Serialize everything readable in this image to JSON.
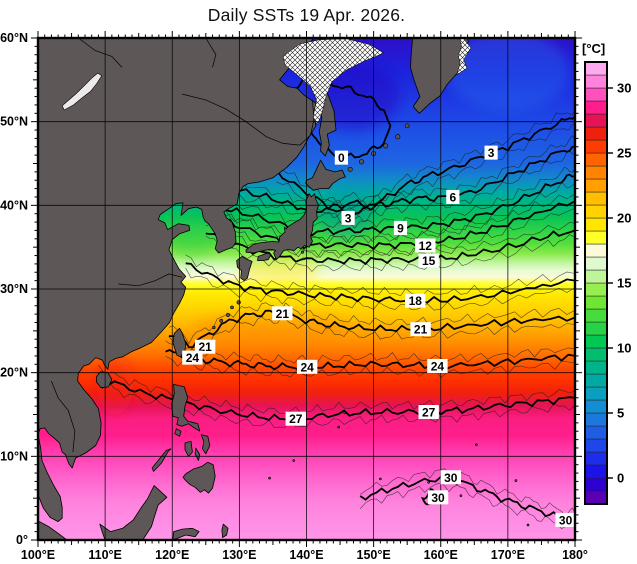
{
  "title": "Daily SSTs 19 Apr. 2026.",
  "axes": {
    "x": {
      "labels": [
        "100°E",
        "110°E",
        "120°E",
        "130°E",
        "140°E",
        "150°E",
        "160°E",
        "170°E",
        "180°"
      ],
      "lons": [
        100,
        110,
        120,
        130,
        140,
        150,
        160,
        170,
        180
      ]
    },
    "y": {
      "labels": [
        "0°",
        "10°N",
        "20°N",
        "30°N",
        "40°N",
        "50°N",
        "60°N"
      ],
      "lats": [
        0,
        10,
        20,
        30,
        40,
        50,
        60
      ]
    }
  },
  "colorbar": {
    "title": "[°C]",
    "tick_values": [
      30,
      25,
      20,
      15,
      10,
      5,
      0
    ],
    "tick_labels": [
      "30",
      "25",
      "20",
      "15",
      "10",
      "5",
      "0"
    ],
    "value_min": -2,
    "value_max": 32,
    "cell_step_c": 1,
    "cells_bottom_to_top": [
      "#5a00b4",
      "#2e00d2",
      "#1c14e6",
      "#1e2ee8",
      "#1e46e8",
      "#1e5ee6",
      "#1c78dc",
      "#148ed2",
      "#0a9fbe",
      "#00aaa2",
      "#00b48a",
      "#00be6e",
      "#00c850",
      "#28d246",
      "#46dc3c",
      "#6ee632",
      "#96ee50",
      "#bef59b",
      "#dffad0",
      "#fbfbd8",
      "#ffff28",
      "#ffe600",
      "#ffd200",
      "#ffbe00",
      "#ffa000",
      "#ff8200",
      "#ff6400",
      "#ff3c00",
      "#f0200f",
      "#e61456",
      "#ff1e8c",
      "#ff50be",
      "#ff82dc",
      "#ffaaf0"
    ]
  },
  "chart_data": {
    "type": "heatmap",
    "title": "Daily SSTs 19 Apr. 2026.",
    "variable": "sea surface temperature",
    "units": "°C",
    "x_axis": {
      "label": "longitude",
      "range_deg_east": [
        100,
        180
      ],
      "major_tick_deg": 10,
      "minor_tick_deg": 1
    },
    "y_axis": {
      "label": "latitude",
      "range_deg_north": [
        0,
        60
      ],
      "major_tick_deg": 10,
      "minor_tick_deg": 1
    },
    "colorbar_range_c": [
      -2,
      32
    ],
    "contour_interval_c": 1,
    "bold_contour_interval_c": 3,
    "isotherms": [
      {
        "value": 0,
        "closed": true,
        "points": [
          [
            138,
            54
          ],
          [
            139,
            51
          ],
          [
            141,
            48.5
          ],
          [
            143,
            46.5
          ],
          [
            146,
            45.7
          ],
          [
            149,
            46.2
          ],
          [
            151.5,
            47.5
          ],
          [
            152.5,
            49.5
          ],
          [
            151.5,
            51.5
          ],
          [
            149,
            53
          ],
          [
            146,
            54
          ],
          [
            142.5,
            54.8
          ],
          [
            139.8,
            54.8
          ]
        ]
      },
      {
        "value": 3,
        "points": [
          [
            135.5,
            44
          ],
          [
            140,
            41.5
          ],
          [
            144,
            39.5
          ],
          [
            146.2,
            38.7
          ],
          [
            149,
            39.5
          ],
          [
            152,
            41
          ],
          [
            155,
            42.5
          ],
          [
            158,
            43.5
          ],
          [
            162,
            44.5
          ],
          [
            166,
            45.8
          ],
          [
            170,
            47
          ],
          [
            174,
            48.5
          ],
          [
            178,
            50
          ],
          [
            180,
            50.6
          ]
        ]
      },
      {
        "value": 6,
        "points": [
          [
            129,
            42
          ],
          [
            134,
            41
          ],
          [
            138,
            40
          ],
          [
            141,
            39.3
          ],
          [
            144,
            39.8
          ],
          [
            147,
            40.3
          ],
          [
            150,
            40
          ],
          [
            153,
            40.3
          ],
          [
            156,
            40.8
          ],
          [
            159,
            40.9
          ],
          [
            162,
            41
          ],
          [
            166,
            42
          ],
          [
            170,
            43.5
          ],
          [
            174,
            45
          ],
          [
            178,
            46.5
          ],
          [
            180,
            47
          ]
        ]
      },
      {
        "value": 9,
        "points": [
          [
            128,
            39.5
          ],
          [
            132,
            38.8
          ],
          [
            136,
            37.8
          ],
          [
            140,
            36.8
          ],
          [
            144,
            36.9
          ],
          [
            148,
            37
          ],
          [
            151,
            37.2
          ],
          [
            154,
            37.3
          ],
          [
            158,
            37.5
          ],
          [
            162,
            38
          ],
          [
            166,
            38.8
          ],
          [
            170,
            40
          ],
          [
            174,
            41.5
          ],
          [
            178,
            43
          ],
          [
            180,
            43.5
          ]
        ]
      },
      {
        "value": 12,
        "points": [
          [
            126.5,
            38.5
          ],
          [
            130,
            37.5
          ],
          [
            134,
            36.3
          ],
          [
            138,
            35.3
          ],
          [
            142,
            35.2
          ],
          [
            146,
            35.3
          ],
          [
            150,
            35.2
          ],
          [
            154,
            35.3
          ],
          [
            158,
            35.6
          ],
          [
            162,
            36
          ],
          [
            166,
            36.8
          ],
          [
            170,
            37.8
          ],
          [
            174,
            39
          ],
          [
            180,
            40.5
          ]
        ]
      },
      {
        "value": 15,
        "points": [
          [
            125,
            37
          ],
          [
            128,
            35.8
          ],
          [
            132,
            34.6
          ],
          [
            136,
            33.8
          ],
          [
            140,
            33.5
          ],
          [
            144,
            33.4
          ],
          [
            148,
            33.4
          ],
          [
            152,
            33.5
          ],
          [
            156,
            33.5
          ],
          [
            160,
            33.6
          ],
          [
            164,
            34
          ],
          [
            170,
            35
          ],
          [
            176,
            36.3
          ],
          [
            180,
            37
          ]
        ]
      },
      {
        "value": 18,
        "points": [
          [
            122,
            33
          ],
          [
            126,
            31.5
          ],
          [
            130,
            30.3
          ],
          [
            134,
            29.8
          ],
          [
            138,
            29.5
          ],
          [
            142,
            29.2
          ],
          [
            146,
            29
          ],
          [
            150,
            28.8
          ],
          [
            154,
            28.7
          ],
          [
            158,
            28.6
          ],
          [
            163,
            28.8
          ],
          [
            168,
            29.3
          ],
          [
            174,
            30.2
          ],
          [
            180,
            31
          ]
        ]
      },
      {
        "value": 21,
        "points": [
          [
            119.5,
            24.8
          ],
          [
            122.5,
            23.2
          ],
          [
            125.5,
            24.6
          ],
          [
            128.5,
            26.2
          ],
          [
            131.5,
            26.9
          ],
          [
            134.5,
            27.2
          ],
          [
            137.5,
            26.9
          ],
          [
            140.5,
            26.1
          ],
          [
            143.5,
            25.7
          ],
          [
            147,
            25.4
          ],
          [
            151,
            25.2
          ],
          [
            155,
            25.2
          ],
          [
            159,
            25.3
          ],
          [
            164,
            25.6
          ],
          [
            169,
            26
          ],
          [
            174,
            26.3
          ],
          [
            180,
            26.6
          ]
        ]
      },
      {
        "value": 24,
        "points": [
          [
            119,
            22.6
          ],
          [
            122,
            21.9
          ],
          [
            125,
            21.5
          ],
          [
            128,
            21.2
          ],
          [
            131,
            21
          ],
          [
            134,
            20.8
          ],
          [
            137,
            20.7
          ],
          [
            140,
            20.7
          ],
          [
            144,
            20.8
          ],
          [
            148,
            21
          ],
          [
            152,
            21
          ],
          [
            156,
            20.9
          ],
          [
            160,
            20.8
          ],
          [
            165,
            21
          ],
          [
            170,
            21.3
          ],
          [
            175,
            21.7
          ],
          [
            180,
            22
          ]
        ]
      },
      {
        "value": 27,
        "points": [
          [
            109,
            19.8
          ],
          [
            112,
            18.6
          ],
          [
            116,
            17.5
          ],
          [
            120,
            16.8
          ],
          [
            124,
            16
          ],
          [
            128,
            15.3
          ],
          [
            132,
            14.8
          ],
          [
            136,
            14.5
          ],
          [
            140,
            14.6
          ],
          [
            144,
            15
          ],
          [
            148,
            15.2
          ],
          [
            152,
            15.3
          ],
          [
            156,
            15.3
          ],
          [
            160,
            15.4
          ],
          [
            164,
            15.6
          ],
          [
            168,
            16
          ],
          [
            172,
            16.3
          ],
          [
            176,
            16.6
          ],
          [
            180,
            17
          ]
        ]
      },
      {
        "value": 30,
        "points": [
          [
            148,
            5
          ],
          [
            152,
            6
          ],
          [
            156,
            6.8
          ],
          [
            160,
            7.4
          ],
          [
            163,
            7
          ],
          [
            166,
            6
          ],
          [
            169,
            5
          ],
          [
            172,
            4.2
          ],
          [
            175,
            3.4
          ],
          [
            178,
            2.7
          ],
          [
            180,
            2.4
          ]
        ]
      },
      {
        "value": 30,
        "closed": true,
        "points": [
          [
            157.3,
            5.1
          ],
          [
            158.5,
            6
          ],
          [
            159.7,
            5.1
          ],
          [
            158.5,
            4.3
          ]
        ]
      }
    ],
    "contour_labels": [
      {
        "value": "0",
        "lon": 145.2,
        "lat": 45.7
      },
      {
        "value": "3",
        "lon": 167.5,
        "lat": 46.3
      },
      {
        "value": "3",
        "lon": 146.2,
        "lat": 38.5
      },
      {
        "value": "6",
        "lon": 161.8,
        "lat": 41.0
      },
      {
        "value": "9",
        "lon": 154.0,
        "lat": 37.3
      },
      {
        "value": "12",
        "lon": 157.7,
        "lat": 35.2
      },
      {
        "value": "15",
        "lon": 158.2,
        "lat": 33.4
      },
      {
        "value": "18",
        "lon": 156.2,
        "lat": 28.6
      },
      {
        "value": "21",
        "lon": 136.4,
        "lat": 27.1
      },
      {
        "value": "21",
        "lon": 157.0,
        "lat": 25.2
      },
      {
        "value": "21",
        "lon": 124.9,
        "lat": 23.1
      },
      {
        "value": "24",
        "lon": 123.0,
        "lat": 21.8
      },
      {
        "value": "24",
        "lon": 140.1,
        "lat": 20.7
      },
      {
        "value": "24",
        "lon": 159.5,
        "lat": 20.8
      },
      {
        "value": "27",
        "lon": 138.4,
        "lat": 14.5
      },
      {
        "value": "27",
        "lon": 158.2,
        "lat": 15.3
      },
      {
        "value": "30",
        "lon": 161.5,
        "lat": 7.5
      },
      {
        "value": "30",
        "lon": 159.6,
        "lat": 5.1
      },
      {
        "value": "30",
        "lon": 178.6,
        "lat": 2.4
      }
    ],
    "latitudinal_gradient": [
      {
        "lat": 60,
        "color": "#2f0fc8"
      },
      {
        "lat": 56,
        "color": "#1c22dc"
      },
      {
        "lat": 52,
        "color": "#1e3ce4"
      },
      {
        "lat": 48,
        "color": "#1e54e6"
      },
      {
        "lat": 45,
        "color": "#1e66e2"
      },
      {
        "lat": 43,
        "color": "#118cc8"
      },
      {
        "lat": 41.5,
        "color": "#00aaa2"
      },
      {
        "lat": 40,
        "color": "#00b97a"
      },
      {
        "lat": 38.5,
        "color": "#0ac455"
      },
      {
        "lat": 37,
        "color": "#2ed348"
      },
      {
        "lat": 35.5,
        "color": "#52de3c"
      },
      {
        "lat": 34.2,
        "color": "#8aea4c"
      },
      {
        "lat": 33.2,
        "color": "#bef59b"
      },
      {
        "lat": 32.2,
        "color": "#e8fbd4"
      },
      {
        "lat": 31.4,
        "color": "#fbfbd8"
      },
      {
        "lat": 30.6,
        "color": "#ffff28"
      },
      {
        "lat": 29.5,
        "color": "#ffeb00"
      },
      {
        "lat": 28,
        "color": "#ffd800"
      },
      {
        "lat": 26.5,
        "color": "#ffc400"
      },
      {
        "lat": 25,
        "color": "#ffa800"
      },
      {
        "lat": 23.5,
        "color": "#ff8c00"
      },
      {
        "lat": 22,
        "color": "#ff6e00"
      },
      {
        "lat": 20.5,
        "color": "#ff4800"
      },
      {
        "lat": 19,
        "color": "#ff3000"
      },
      {
        "lat": 17.5,
        "color": "#f0200f"
      },
      {
        "lat": 16,
        "color": "#e61456"
      },
      {
        "lat": 14.5,
        "color": "#fa1e82"
      },
      {
        "lat": 12.5,
        "color": "#ff1e8c"
      },
      {
        "lat": 10.5,
        "color": "#ff3cae"
      },
      {
        "lat": 8.5,
        "color": "#ff55c3"
      },
      {
        "lat": 6.5,
        "color": "#ff6ed2"
      },
      {
        "lat": 4.5,
        "color": "#ff82dc"
      },
      {
        "lat": 2,
        "color": "#ff8ee4"
      },
      {
        "lat": 0,
        "color": "#ff96e8"
      }
    ],
    "features": {
      "land_color": "#5e5757",
      "sea_ice": "white cross-hatched area, NW Sea of Okhotsk and Kamchatka coast",
      "lake_baikal": "white"
    }
  }
}
